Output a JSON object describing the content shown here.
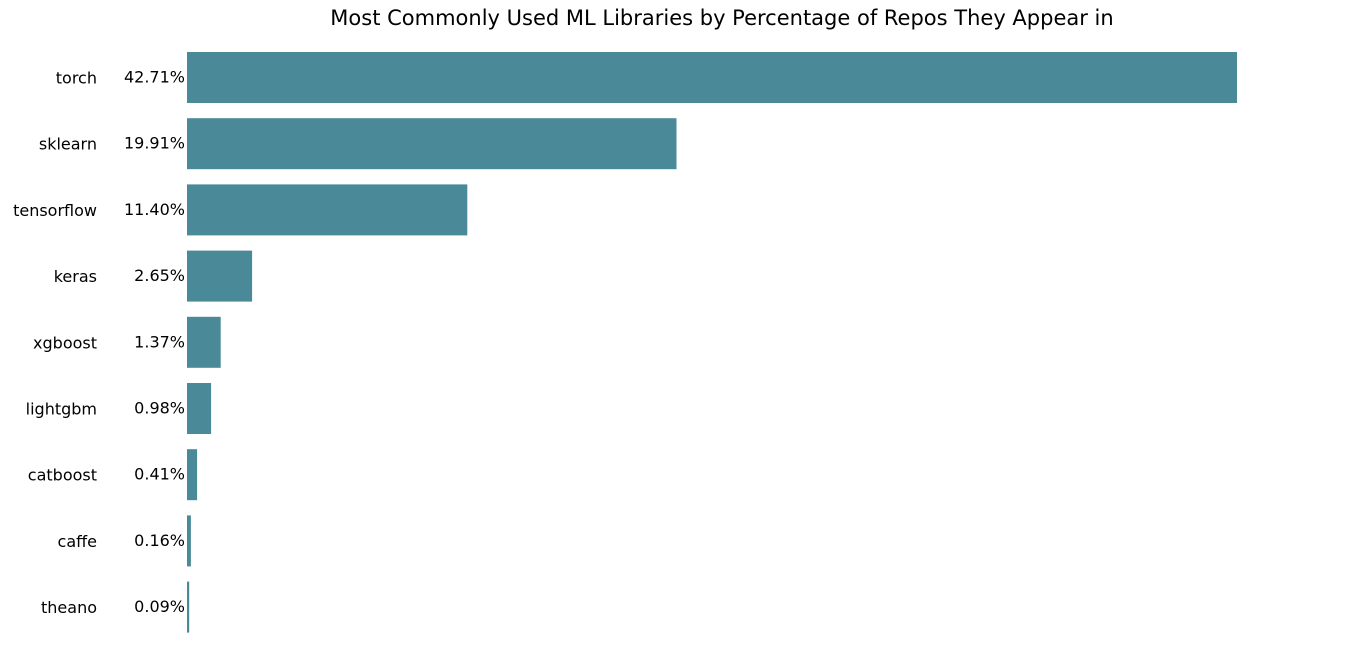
{
  "chart_data": {
    "type": "bar",
    "orientation": "horizontal",
    "title": "Most Commonly Used ML Libraries by Percentage of Repos They Appear in",
    "xlabel": "",
    "ylabel": "",
    "categories": [
      "torch",
      "sklearn",
      "tensorflow",
      "keras",
      "xgboost",
      "lightgbm",
      "catboost",
      "caffe",
      "theano"
    ],
    "values": [
      42.71,
      19.91,
      11.4,
      2.65,
      1.37,
      0.98,
      0.41,
      0.16,
      0.09
    ],
    "value_labels": [
      "42.71%",
      "19.91%",
      "11.40%",
      "2.65%",
      "1.37%",
      "0.98%",
      "0.41%",
      "0.16%",
      "0.09%"
    ],
    "xlim": [
      0,
      45
    ],
    "bar_color": "#4a8a98",
    "grid": false,
    "axes_visible": false
  }
}
